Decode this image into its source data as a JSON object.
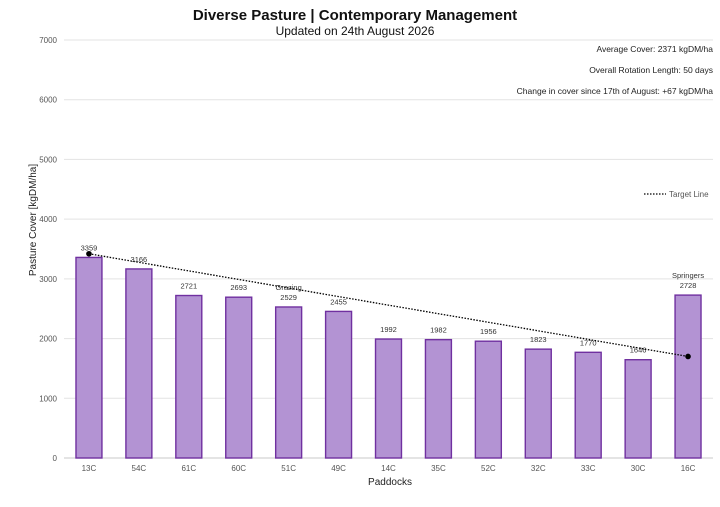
{
  "chart_data": {
    "type": "bar",
    "title": "Diverse Pasture | Contemporary Management",
    "subtitle": "Updated on 24th August 2026",
    "xlabel": "Paddocks",
    "ylabel": "Pasture Cover [kgDM/ha]",
    "ylim": [
      0,
      7000
    ],
    "yticks": [
      0,
      1000,
      2000,
      3000,
      4000,
      5000,
      6000,
      7000
    ],
    "grid": true,
    "categories": [
      "13C",
      "54C",
      "61C",
      "60C",
      "51C",
      "49C",
      "14C",
      "35C",
      "52C",
      "32C",
      "33C",
      "30C",
      "16C"
    ],
    "values": [
      3359,
      3166,
      2721,
      2693,
      2529,
      2455,
      1992,
      1982,
      1956,
      1823,
      1770,
      1646,
      2728
    ],
    "bar_annotations": [
      {
        "category": "51C",
        "text": "Grazing"
      },
      {
        "category": "16C",
        "text": "Springers"
      }
    ],
    "target_line": {
      "name": "Target Line",
      "start": {
        "category": "13C",
        "value": 3420
      },
      "end": {
        "category": "16C",
        "value": 1700
      }
    },
    "legend": {
      "position": "right",
      "entries": [
        "Target Line"
      ]
    },
    "info_lines": [
      "Average Cover: 2371 kgDM/ha",
      "Overall Rotation Length: 50 days",
      "Change in cover since 17th of August: +67 kgDM/ha"
    ],
    "colors": {
      "bar_fill": "#b393d3",
      "bar_stroke": "#7030a0",
      "grid": "#e3e3e3",
      "target_line": "#000000"
    }
  }
}
